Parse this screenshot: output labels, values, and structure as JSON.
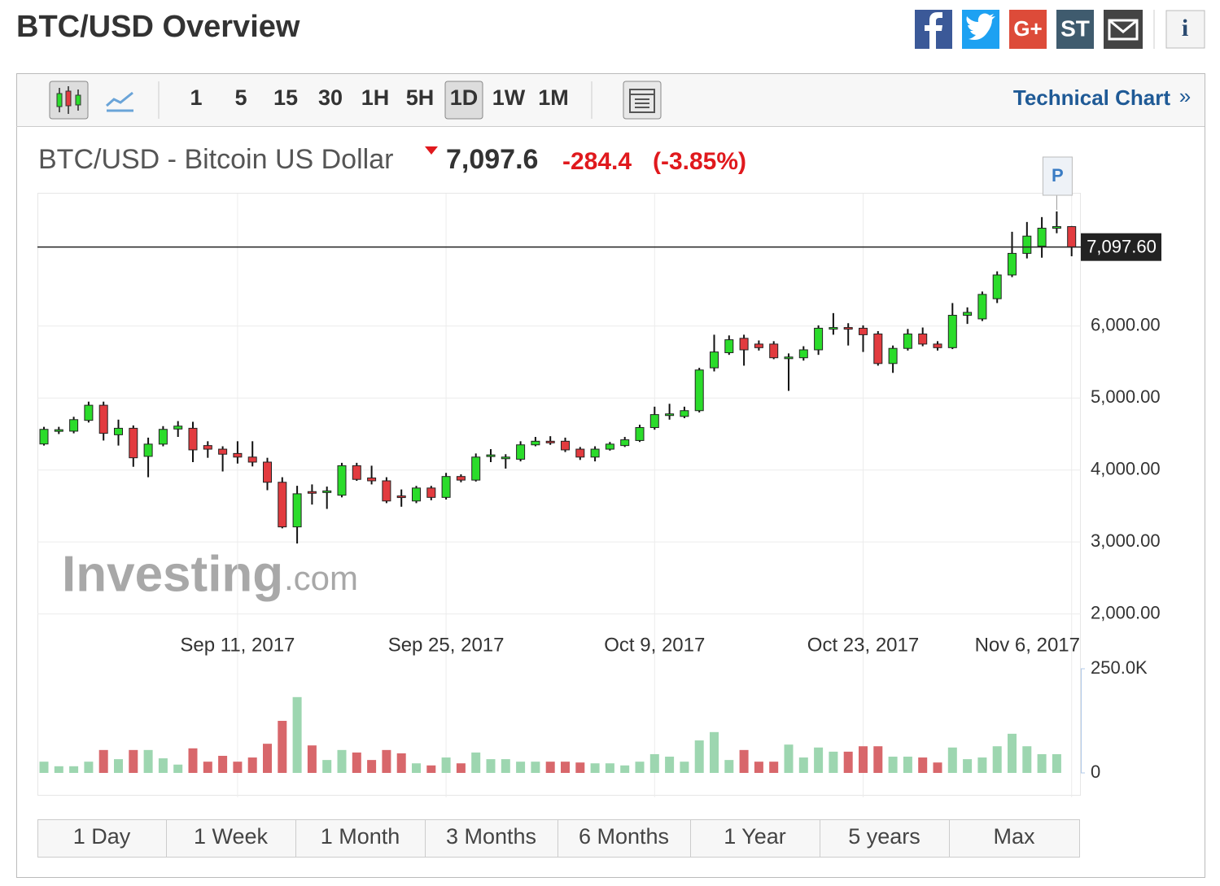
{
  "header": {
    "title": "BTC/USD Overview",
    "share_icons": [
      "G+",
      "ST",
      "i"
    ]
  },
  "toolbar": {
    "intervals": [
      "1",
      "5",
      "15",
      "30",
      "1H",
      "5H",
      "1D",
      "1W",
      "1M"
    ],
    "active": "1D",
    "technical_chart": "Technical Chart",
    "more": "»"
  },
  "quote": {
    "name": "BTC/USD - Bitcoin US Dollar",
    "price": "7,097.6",
    "change": "-284.4",
    "change_pct": "(-3.85%)"
  },
  "watermark": [
    "Investing",
    ".com"
  ],
  "ranges": [
    "1 Day",
    "1 Week",
    "1 Month",
    "3 Months",
    "6 Months",
    "1 Year",
    "5 years",
    "Max"
  ],
  "chart_data": {
    "type": "candlestick",
    "categories": [
      null,
      null,
      null,
      null,
      null,
      null,
      null,
      null,
      null,
      null,
      null,
      null,
      null,
      "Sep 11, 2017",
      null,
      null,
      null,
      null,
      null,
      null,
      null,
      null,
      null,
      null,
      null,
      null,
      null,
      "Sep 25, 2017",
      null,
      null,
      null,
      null,
      null,
      null,
      null,
      null,
      null,
      null,
      null,
      null,
      null,
      "Oct 9, 2017",
      null,
      null,
      null,
      null,
      null,
      null,
      null,
      null,
      null,
      null,
      null,
      null,
      null,
      "Oct 23, 2017",
      null,
      null,
      null,
      null,
      null,
      null,
      null,
      null,
      null,
      null,
      null,
      null,
      null,
      "Nov 6, 2017"
    ],
    "open": [
      4362,
      4540,
      4540,
      4690,
      4900,
      4490,
      4580,
      4190,
      4360,
      4570,
      4580,
      4340,
      4290,
      4230,
      4180,
      4110,
      3830,
      3210,
      3700,
      3700,
      3650,
      4060,
      3890,
      3850,
      3640,
      3570,
      3750,
      3620,
      3910,
      3860,
      4200,
      4170,
      4150,
      4350,
      4400,
      4400,
      4290,
      4180,
      4290,
      4340,
      4410,
      4590,
      4770,
      4745,
      4825,
      5420,
      5630,
      5830,
      5750,
      5750,
      5560,
      5560,
      5670,
      5970,
      5980,
      5970,
      5890,
      5480,
      5690,
      5890,
      5750,
      5700,
      6150,
      6100,
      6380,
      6710,
      7010,
      7110,
      7370,
      7382
    ],
    "high": [
      4600,
      4600,
      4740,
      4950,
      4950,
      4700,
      4620,
      4450,
      4610,
      4680,
      4670,
      4400,
      4330,
      4400,
      4400,
      4170,
      3900,
      3780,
      3800,
      3770,
      4100,
      4100,
      4060,
      3900,
      3730,
      3780,
      3780,
      3960,
      3940,
      4230,
      4290,
      4220,
      4400,
      4460,
      4470,
      4450,
      4320,
      4330,
      4390,
      4460,
      4630,
      4880,
      4920,
      4880,
      5420,
      5880,
      5870,
      5880,
      5800,
      5790,
      5620,
      5720,
      6010,
      6180,
      6040,
      6010,
      5930,
      5730,
      5960,
      5980,
      5790,
      6320,
      6260,
      6480,
      6760,
      7310,
      7446,
      7514,
      7593,
      7390
    ],
    "low": [
      4340,
      4500,
      4510,
      4660,
      4410,
      4340,
      4045,
      3900,
      4330,
      4460,
      4110,
      4170,
      3980,
      4090,
      4050,
      3720,
      3190,
      2980,
      3520,
      3460,
      3620,
      3850,
      3800,
      3540,
      3490,
      3540,
      3580,
      3590,
      3830,
      3840,
      4110,
      4020,
      4120,
      4330,
      4350,
      4250,
      4140,
      4120,
      4270,
      4320,
      4390,
      4560,
      4700,
      4720,
      4800,
      5370,
      5600,
      5450,
      5660,
      5540,
      5100,
      5520,
      5600,
      5880,
      5730,
      5640,
      5450,
      5350,
      5660,
      5720,
      5660,
      5680,
      6030,
      6070,
      6320,
      6680,
      6940,
      6950,
      7290,
      6970
    ],
    "close": [
      4565,
      4560,
      4700,
      4900,
      4510,
      4580,
      4170,
      4360,
      4565,
      4610,
      4280,
      4290,
      4220,
      4180,
      4110,
      3830,
      3210,
      3670,
      3690,
      3710,
      4060,
      3870,
      3850,
      3570,
      3630,
      3750,
      3620,
      3910,
      3860,
      4180,
      4210,
      4180,
      4350,
      4400,
      4390,
      4280,
      4180,
      4290,
      4360,
      4420,
      4590,
      4770,
      4780,
      4825,
      5390,
      5640,
      5810,
      5670,
      5700,
      5560,
      5570,
      5670,
      5970,
      5980,
      5970,
      5880,
      5480,
      5690,
      5890,
      5750,
      5700,
      6150,
      6190,
      6440,
      6710,
      7010,
      7250,
      7360,
      7382,
      7097.6
    ],
    "volume": [
      27000,
      16000,
      16000,
      27000,
      55000,
      33000,
      55000,
      55000,
      35000,
      20000,
      59000,
      27000,
      41000,
      27000,
      37000,
      70000,
      125000,
      182000,
      66000,
      31000,
      55000,
      49000,
      31000,
      55000,
      47000,
      23000,
      18000,
      37000,
      23000,
      49000,
      33000,
      33000,
      27000,
      27000,
      27000,
      27000,
      25000,
      23000,
      23000,
      18000,
      27000,
      45000,
      39000,
      27000,
      78000,
      98000,
      31000,
      55000,
      27000,
      27000,
      68000,
      37000,
      61000,
      51000,
      51000,
      64000,
      64000,
      39000,
      39000,
      37000,
      25000,
      61000,
      33000,
      37000,
      64000,
      94000,
      64000,
      45000,
      45000,
      null
    ],
    "up_color": "#2bdc2b",
    "down_color": "#e23b3f",
    "volume_up_color": "#9dd6b0",
    "volume_down_color": "#d8676b",
    "ylim": [
      1770,
      7840
    ],
    "yticks": [
      {
        "value": 2000,
        "label": "2,000.00"
      },
      {
        "value": 3000,
        "label": "3,000.00"
      },
      {
        "value": 4000,
        "label": "4,000.00"
      },
      {
        "value": 5000,
        "label": "5,000.00"
      },
      {
        "value": 6000,
        "label": "6,000.00"
      }
    ],
    "vlim": [
      0,
      250000
    ],
    "vticks": [
      0,
      {
        "value": 250000,
        "label": "250.0K"
      }
    ],
    "last_price": {
      "value": 7097.6,
      "label": "7,097.60"
    },
    "event_marker": "P",
    "grid": true
  }
}
